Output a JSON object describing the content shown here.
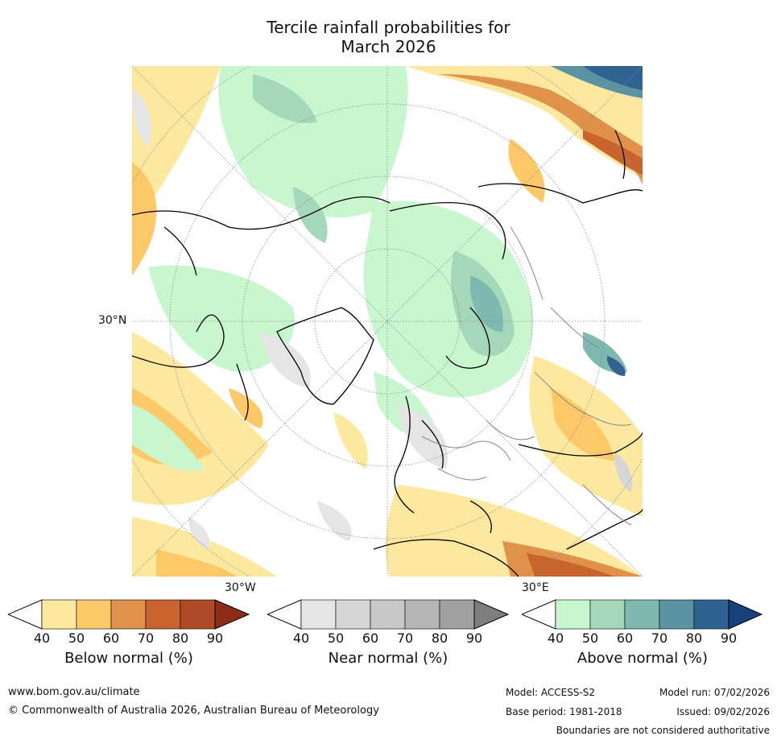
{
  "title_line1": "Tercile rainfall probabilities for",
  "title_line2": "March 2026",
  "map": {
    "lat_label": "30°N",
    "lon_label_left": "30°W",
    "lon_label_right": "30°E"
  },
  "legends": [
    {
      "title": "Below normal (%)",
      "ticks": [
        "40",
        "50",
        "60",
        "70",
        "80",
        "90"
      ],
      "colors": [
        "#ffffff",
        "#fde8a0",
        "#fcc868",
        "#e0914a",
        "#c9642f",
        "#b04a26",
        "#8e2d17"
      ]
    },
    {
      "title": "Near normal (%)",
      "ticks": [
        "40",
        "50",
        "60",
        "70",
        "80",
        "90"
      ],
      "colors": [
        "#ffffff",
        "#e5e5e5",
        "#d6d6d6",
        "#c8c8c8",
        "#b5b5b5",
        "#a0a0a0",
        "#7e7e7e"
      ]
    },
    {
      "title": "Above normal (%)",
      "ticks": [
        "40",
        "50",
        "60",
        "70",
        "80",
        "90"
      ],
      "colors": [
        "#ffffff",
        "#c8f7cf",
        "#a4d8b9",
        "#7eb8b0",
        "#5b93a2",
        "#306392",
        "#17437a"
      ]
    }
  ],
  "footer": {
    "url": "www.bom.gov.au/climate",
    "copyright": "© Commonwealth of Australia 2026, Australian Bureau of Meteorology",
    "model": "Model: ACCESS-S2",
    "model_run": "Model run: 07/02/2026",
    "base_period": "Base period: 1981-2018",
    "issued": "Issued: 09/02/2026",
    "disclaimer": "Boundaries are not considered authoritative"
  }
}
